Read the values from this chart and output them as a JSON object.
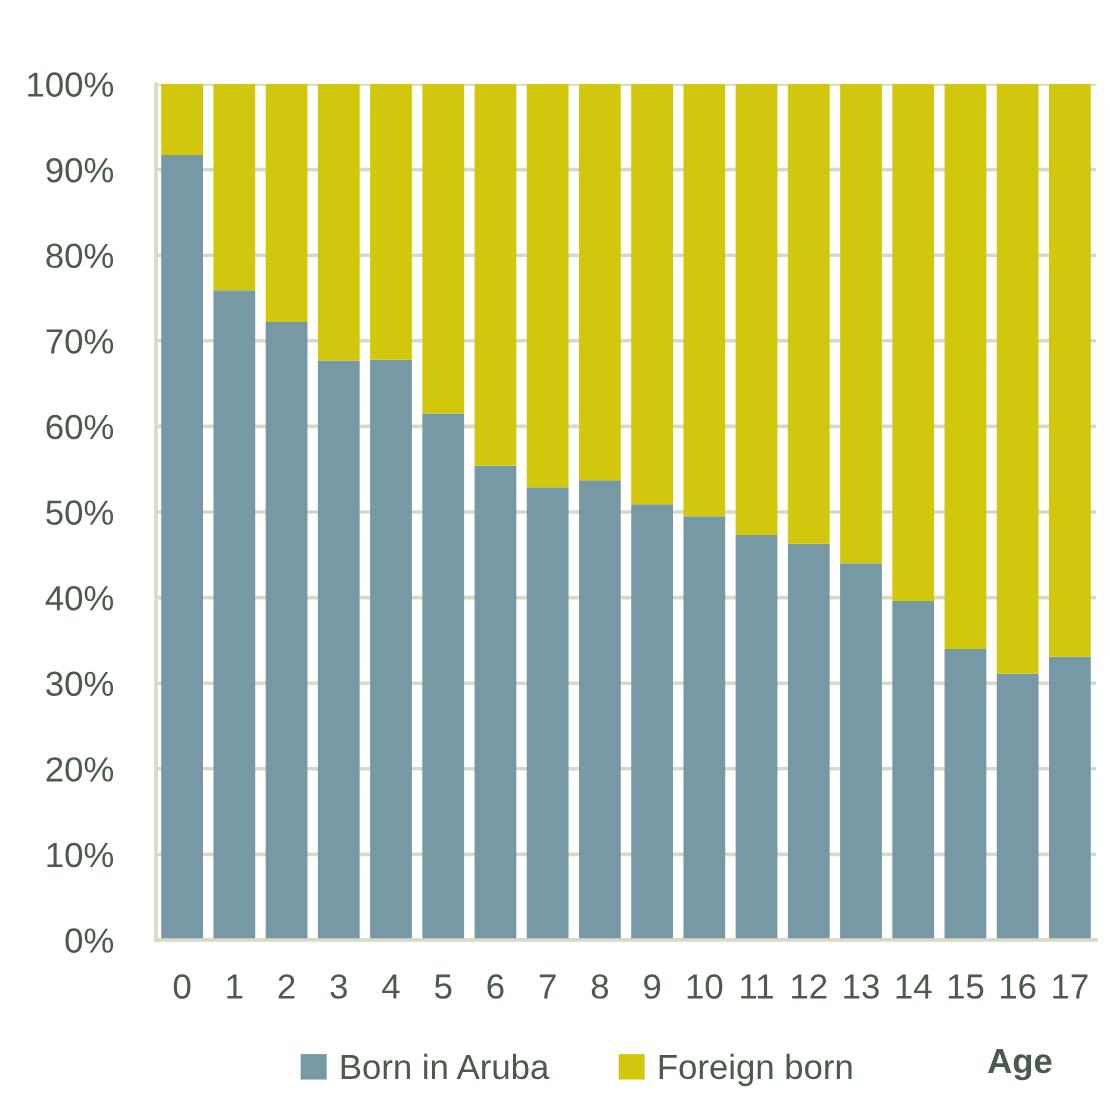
{
  "chart_data": {
    "type": "bar",
    "stacked": true,
    "xlabel": "Age",
    "categories": [
      "0",
      "1",
      "2",
      "3",
      "4",
      "5",
      "6",
      "7",
      "8",
      "9",
      "10",
      "11",
      "12",
      "13",
      "14",
      "15",
      "16",
      "17"
    ],
    "series": [
      {
        "name": "Born in Aruba",
        "color": "#7699a5",
        "values": [
          91.7,
          75.9,
          72.2,
          67.7,
          67.8,
          61.5,
          55.4,
          52.9,
          53.7,
          50.9,
          49.5,
          47.3,
          46.3,
          44.0,
          39.6,
          34.0,
          31.1,
          33.1
        ]
      },
      {
        "name": "Foreign born",
        "color": "#d1c70d",
        "values": [
          8.3,
          24.1,
          27.8,
          32.3,
          32.2,
          38.5,
          44.6,
          47.1,
          46.3,
          49.1,
          50.5,
          52.7,
          53.7,
          56.0,
          60.4,
          66.0,
          68.9,
          66.9
        ]
      }
    ],
    "ylim": [
      0,
      100
    ],
    "yticks": [
      {
        "value": 0,
        "label": "0%"
      },
      {
        "value": 10,
        "label": "10%"
      },
      {
        "value": 20,
        "label": "20%"
      },
      {
        "value": 30,
        "label": "30%"
      },
      {
        "value": 40,
        "label": "40%"
      },
      {
        "value": 50,
        "label": "50%"
      },
      {
        "value": 60,
        "label": "60%"
      },
      {
        "value": 70,
        "label": "70%"
      },
      {
        "value": 80,
        "label": "80%"
      },
      {
        "value": 90,
        "label": "90%"
      },
      {
        "value": 100,
        "label": "100%"
      }
    ],
    "grid": "y",
    "legend": "bottom"
  }
}
